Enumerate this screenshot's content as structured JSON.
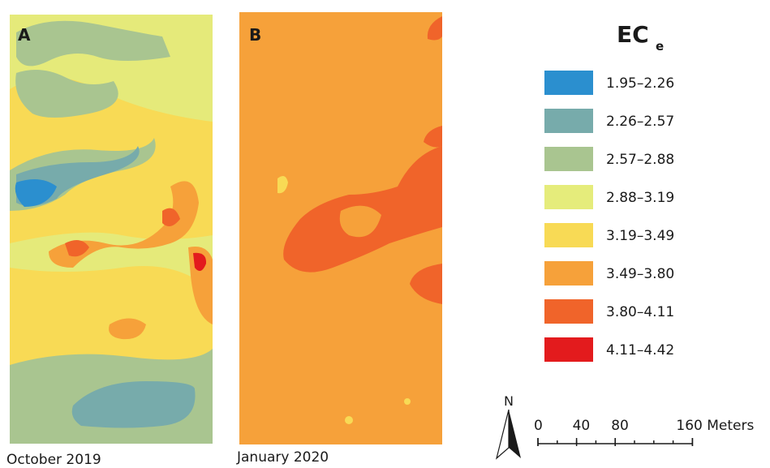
{
  "panels": [
    {
      "label": "A",
      "caption": "October 2019"
    },
    {
      "label": "B",
      "caption": "January 2020"
    }
  ],
  "legend": {
    "title": "EC",
    "title_subscript": "e",
    "classes": [
      {
        "label": "1.95–2.26",
        "color": "#2b8fcf"
      },
      {
        "label": "2.26–2.57",
        "color": "#77abab"
      },
      {
        "label": "2.57–2.88",
        "color": "#a9c590"
      },
      {
        "label": "2.88–3.19",
        "color": "#e5ec7b"
      },
      {
        "label": "3.19–3.49",
        "color": "#f8da55"
      },
      {
        "label": "3.49–3.80",
        "color": "#f6a13a"
      },
      {
        "label": "3.80–4.11",
        "color": "#f0642a"
      },
      {
        "label": "4.11–4.42",
        "color": "#e31b1d"
      }
    ]
  },
  "north_arrow": {
    "label": "N"
  },
  "scale_bar": {
    "ticks": [
      0,
      40,
      80,
      {
        "value": 160,
        "label": "160 Meters"
      }
    ]
  }
}
